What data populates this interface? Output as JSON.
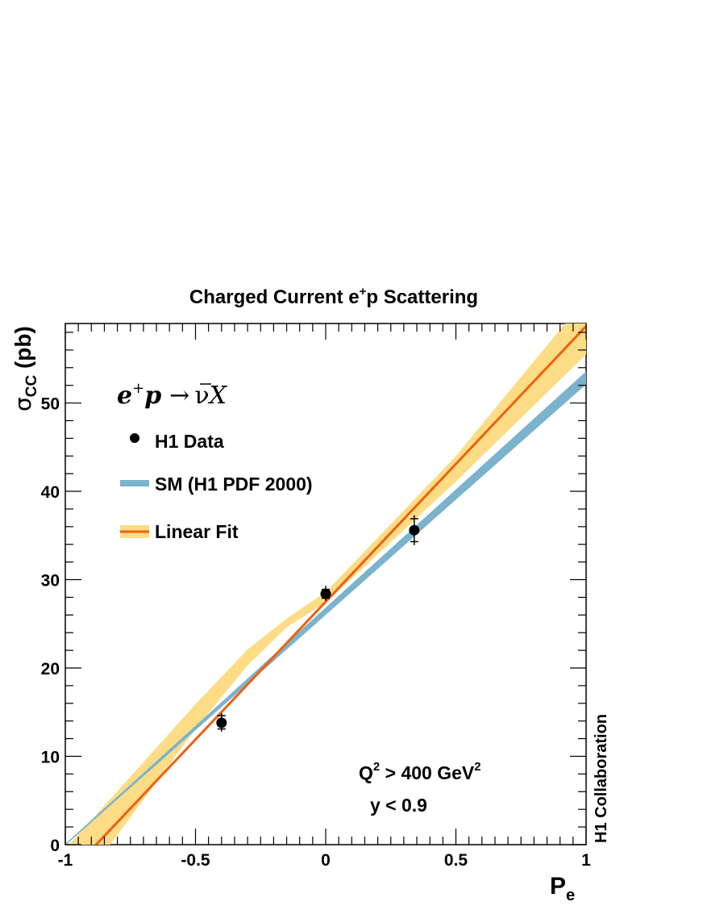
{
  "chart_data": {
    "type": "scatter",
    "title_main": "Charged Current e",
    "title_sup": "+",
    "title_rest": "p Scattering",
    "ylabel_sigma": "σ",
    "ylabel_sub": "CC",
    "ylabel_unit": " (pb)",
    "xlabel_main": "P",
    "xlabel_sub": "e",
    "xlim": [
      -1,
      1
    ],
    "ylim": [
      0,
      59
    ],
    "x_major_ticks": [
      -1,
      -0.5,
      0,
      0.5,
      1
    ],
    "x_tick_labels": [
      "-1",
      "-0.5",
      "0",
      "0.5",
      "1"
    ],
    "y_major_ticks": [
      0,
      10,
      20,
      30,
      40,
      50
    ],
    "y_tick_labels": [
      "0",
      "10",
      "20",
      "30",
      "40",
      "50"
    ],
    "process": {
      "e": "e",
      "sup": "+",
      "p": "p",
      "arrow": "→",
      "nubar": "ν",
      "X": "X"
    },
    "legend": {
      "data_label": "H1 Data",
      "sm_label": "SM (H1 PDF 2000)",
      "fit_label": "Linear Fit"
    },
    "cuts": {
      "q2_main": "Q",
      "q2_sup": "2",
      "q2_rest": " > 400 GeV",
      "q2_sup2": "2",
      "y_cut": "y < 0.9"
    },
    "collaboration": "H1 Collaboration",
    "data_points": [
      {
        "x": -0.4,
        "y": 13.8,
        "err_stat_up": 0.8,
        "err_stat_down": 0.7,
        "err_tot_up": 1.1,
        "err_tot_down": 1.0
      },
      {
        "x": 0.0,
        "y": 28.4,
        "err_stat_up": 0.5,
        "err_stat_down": 0.5,
        "err_tot_up": 0.9,
        "err_tot_down": 0.8
      },
      {
        "x": 0.34,
        "y": 35.6,
        "err_stat_up": 1.3,
        "err_stat_down": 1.3,
        "err_tot_up": 1.7,
        "err_tot_down": 1.7
      }
    ],
    "sm_band": {
      "x": [
        -1,
        1
      ],
      "lower": [
        0.0,
        52.2
      ],
      "upper": [
        0.0,
        53.5
      ]
    },
    "fit_line": {
      "x": [
        -1,
        1
      ],
      "y": [
        -3.7,
        58.7
      ]
    },
    "fit_band": {
      "x": [
        -1,
        -0.5,
        -0.3,
        -0.15,
        0,
        0.5,
        1
      ],
      "lower": [
        -6.9,
        13.1,
        20.3,
        24.6,
        27.4,
        41.1,
        55.5
      ],
      "upper": [
        -0.5,
        15.9,
        22.1,
        25.6,
        28.6,
        44.0,
        61.9
      ]
    },
    "colors": {
      "sm": "#7bb3cc",
      "fit_line": "#f0600e",
      "fit_band": "#fddc86",
      "marker": "#000000"
    }
  }
}
